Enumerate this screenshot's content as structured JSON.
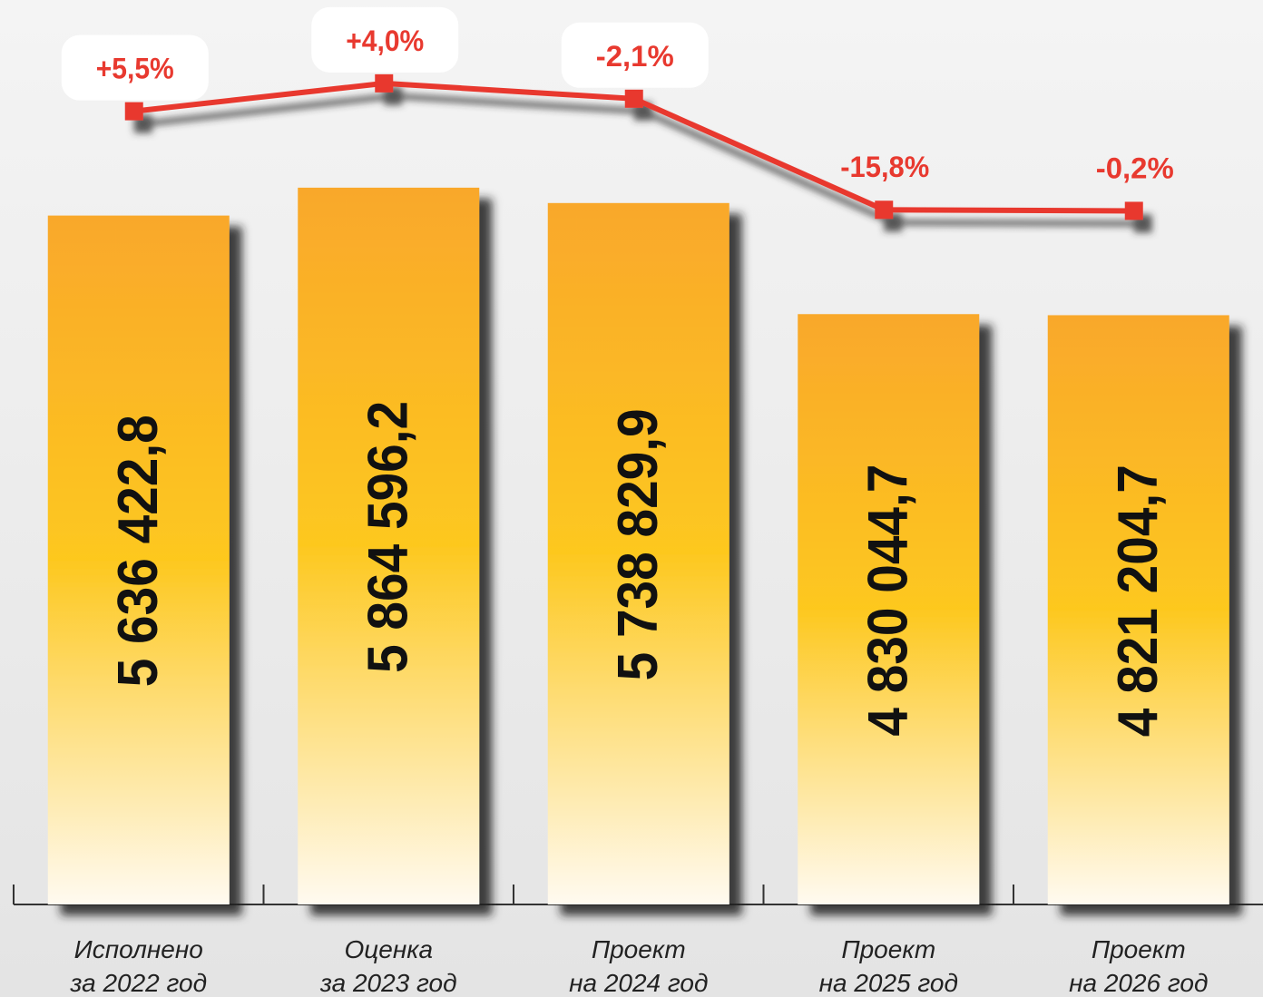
{
  "chart_data": {
    "type": "bar",
    "categories": [
      [
        "Исполнено",
        "за 2022 год"
      ],
      [
        "Оценка",
        "за 2023 год"
      ],
      [
        "Проект",
        "на 2024 год"
      ],
      [
        "Проект",
        "на 2025 год"
      ],
      [
        "Проект",
        "на 2026 год"
      ]
    ],
    "values": [
      5636422.8,
      5864596.2,
      5738829.9,
      4830044.7,
      4821204.7
    ],
    "value_labels": [
      "5 636 422,8",
      "5 864 596,2",
      "5 738 829,9",
      "4 830 044,7",
      "4 821 204,7"
    ],
    "color": "#fbb829",
    "ylim": [
      0,
      7400000
    ],
    "line": {
      "color": "#e8392f",
      "values": [
        5.5,
        4.0,
        -2.1,
        -15.8,
        -0.2
      ],
      "value_labels": [
        "+5,5%",
        "+4,0%",
        "-2,1%",
        "-15,8%",
        "-0,2%"
      ]
    }
  }
}
